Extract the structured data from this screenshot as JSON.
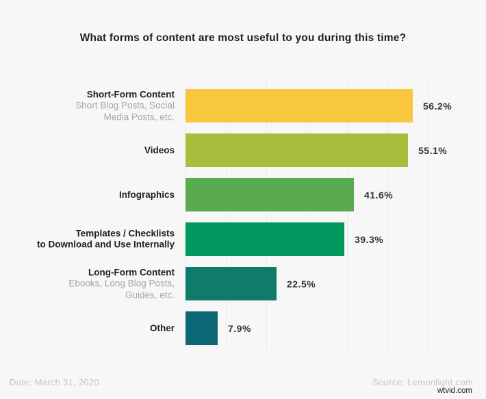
{
  "title": "What forms of content are most useful to you during this time?",
  "footer": {
    "date": "Date: March 31, 2020",
    "source": "Source: Lemonlight.com",
    "watermark": "wtvid.com"
  },
  "chart_data": {
    "type": "bar",
    "orientation": "horizontal",
    "title": "What forms of content are most useful to you during this time?",
    "xlabel": "",
    "ylabel": "",
    "xlim": [
      0,
      60
    ],
    "grid": true,
    "gridline_step_pct": 10,
    "categories": [
      "Short-Form Content",
      "Videos",
      "Infographics",
      "Templates / Checklists to Download and Use Internally",
      "Long-Form Content",
      "Other"
    ],
    "values": [
      56.2,
      55.1,
      41.6,
      39.3,
      22.5,
      7.9
    ],
    "bars": [
      {
        "label_lines": [
          "Short-Form Content"
        ],
        "sub_lines": [
          "Short Blog Posts, Social",
          "Media Posts, etc."
        ],
        "value": 56.2,
        "value_label": "56.2%",
        "color": "#F8C73E"
      },
      {
        "label_lines": [
          "Videos"
        ],
        "sub_lines": [],
        "value": 55.1,
        "value_label": "55.1%",
        "color": "#AABD3D"
      },
      {
        "label_lines": [
          "Infographics"
        ],
        "sub_lines": [],
        "value": 41.6,
        "value_label": "41.6%",
        "color": "#5AAA50"
      },
      {
        "label_lines": [
          "Templates / Checklists",
          "to Download and Use Internally"
        ],
        "sub_lines": [],
        "value": 39.3,
        "value_label": "39.3%",
        "color": "#00985F"
      },
      {
        "label_lines": [
          "Long-Form Content"
        ],
        "sub_lines": [
          "Ebooks, Long Blog Posts,",
          "Guides, etc."
        ],
        "value": 22.5,
        "value_label": "22.5%",
        "color": "#0E7B6B"
      },
      {
        "label_lines": [
          "Other"
        ],
        "sub_lines": [],
        "value": 7.9,
        "value_label": "7.9%",
        "color": "#0D6876"
      }
    ]
  }
}
